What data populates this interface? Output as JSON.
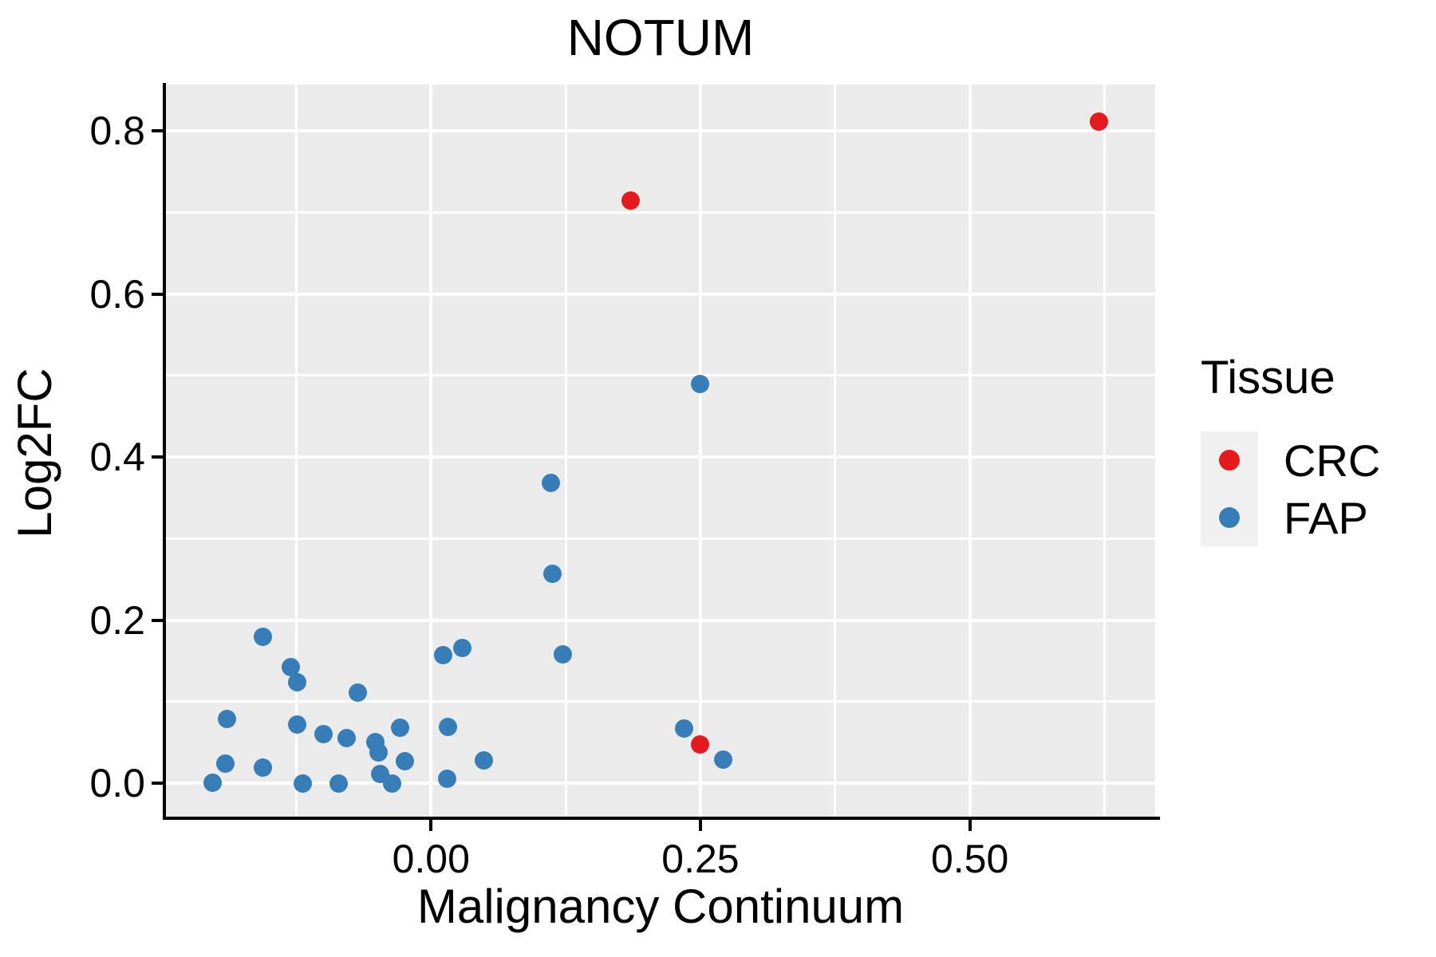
{
  "title": "NOTUM",
  "axes": {
    "x_title": "Malignancy Continuum",
    "y_title": "Log2FC"
  },
  "legend": {
    "title": "Tissue",
    "entries": [
      {
        "label": "CRC",
        "color": "#E41A1C"
      },
      {
        "label": "FAP",
        "color": "#377EB8"
      }
    ]
  },
  "colors": {
    "panel_background": "#EBEBEB",
    "gridline": "#FFFFFF",
    "axis_line": "#000000",
    "text": "#000000",
    "legend_key_background": "#F0F0F0",
    "crc_red": "#E41A1C",
    "fap_blue": "#377EB8"
  },
  "chart_data": {
    "type": "scatter",
    "title": "NOTUM",
    "xlabel": "Malignancy Continuum",
    "ylabel": "Log2FC",
    "xlim": [
      -0.246,
      0.672
    ],
    "ylim": [
      -0.041,
      0.857
    ],
    "x_major_ticks": [
      0.0,
      0.25,
      0.5
    ],
    "x_tick_labels": [
      "0.00",
      "0.25",
      "0.50"
    ],
    "x_minor_ticks": [
      -0.125,
      0.125,
      0.375,
      0.625
    ],
    "y_major_ticks": [
      0.0,
      0.2,
      0.4,
      0.6,
      0.8
    ],
    "y_tick_labels": [
      "0.0",
      "0.2",
      "0.4",
      "0.6",
      "0.8"
    ],
    "y_minor_ticks": [
      0.1,
      0.3,
      0.5,
      0.7
    ],
    "grid": "white major and minor gridlines on gray panel",
    "legend_position": "right",
    "legend_title": "Tissue",
    "series": [
      {
        "name": "FAP",
        "color": "#377EB8",
        "points": [
          [
            -0.203,
            0.001
          ],
          [
            -0.191,
            0.024
          ],
          [
            -0.189,
            0.079
          ],
          [
            -0.156,
            0.18
          ],
          [
            -0.156,
            0.019
          ],
          [
            -0.13,
            0.142
          ],
          [
            -0.124,
            0.124
          ],
          [
            -0.124,
            0.072
          ],
          [
            -0.119,
            0.0
          ],
          [
            -0.1,
            0.06
          ],
          [
            -0.086,
            0.0
          ],
          [
            -0.078,
            0.055
          ],
          [
            -0.068,
            0.111
          ],
          [
            -0.052,
            0.05
          ],
          [
            -0.049,
            0.038
          ],
          [
            -0.047,
            0.011
          ],
          [
            -0.036,
            0.0
          ],
          [
            -0.029,
            0.068
          ],
          [
            -0.024,
            0.027
          ],
          [
            0.011,
            0.157
          ],
          [
            0.016,
            0.069
          ],
          [
            0.015,
            0.005
          ],
          [
            0.029,
            0.166
          ],
          [
            0.049,
            0.028
          ],
          [
            0.111,
            0.368
          ],
          [
            0.113,
            0.257
          ],
          [
            0.122,
            0.158
          ],
          [
            0.235,
            0.067
          ],
          [
            0.25,
            0.49
          ],
          [
            0.271,
            0.029
          ]
        ]
      },
      {
        "name": "CRC",
        "color": "#E41A1C",
        "points": [
          [
            0.185,
            0.715
          ],
          [
            0.62,
            0.812
          ],
          [
            0.25,
            0.048
          ]
        ]
      }
    ]
  }
}
